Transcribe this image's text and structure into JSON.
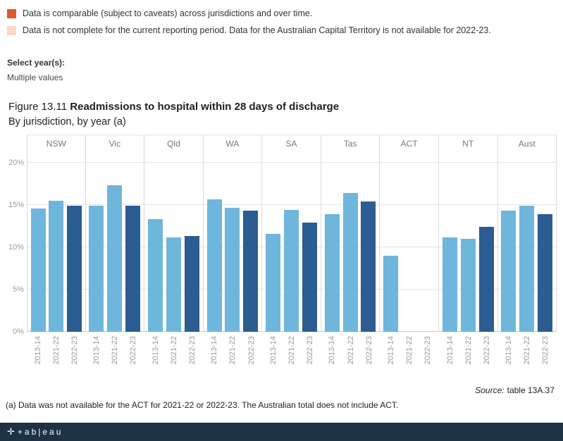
{
  "legend": {
    "items": [
      {
        "name": "comparable",
        "label": "Data is comparable (subject to caveats) across jurisdictions and over time."
      },
      {
        "name": "incomplete",
        "label": "Data is not complete for the current reporting period. Data for the Australian Capital Territory is not available for 2022-23."
      }
    ]
  },
  "filter": {
    "label": "Select year(s):",
    "value": "Multiple values"
  },
  "title": {
    "prefix": "Figure 13.11",
    "main": "Readmissions to hospital within 28 days of discharge",
    "subtitle": "By jurisdiction, by year (a)"
  },
  "chart_data": {
    "type": "bar",
    "title": "Figure 13.11 Readmissions to hospital within 28 days of discharge",
    "subtitle": "By jurisdiction, by year (a)",
    "categories": [
      "NSW",
      "Vic",
      "Qld",
      "WA",
      "SA",
      "Tas",
      "ACT",
      "NT",
      "Aust"
    ],
    "years": [
      "2013-14",
      "2021-22",
      "2022-23"
    ],
    "series": [
      {
        "name": "2013-14",
        "color_key": "bar_light",
        "values": [
          14.6,
          14.9,
          13.3,
          15.7,
          11.6,
          13.9,
          9.0,
          11.2,
          14.3
        ]
      },
      {
        "name": "2021-22",
        "color_key": "bar_light",
        "values": [
          15.5,
          17.3,
          11.2,
          14.7,
          14.4,
          16.4,
          null,
          11.0,
          14.9
        ]
      },
      {
        "name": "2022-23",
        "color_key": "bar_dark",
        "values": [
          14.9,
          14.9,
          11.3,
          14.3,
          12.9,
          15.4,
          null,
          12.4,
          13.9
        ]
      }
    ],
    "ylabel": "",
    "ylim": [
      0,
      20
    ],
    "yticks": [
      "0%",
      "5%",
      "10%",
      "15%",
      "20%"
    ],
    "grid": "horizontal",
    "legend_position": "none"
  },
  "source": {
    "label": "Source:",
    "value": "table 13A.37"
  },
  "footnote": {
    "text": "(a) Data was not available for the ACT for 2021-22 or 2022-23. The Australian total does not include ACT."
  },
  "footer": {
    "logo_icon": "✛",
    "logo_text": "+ab|eau"
  },
  "colors": {
    "comparable": "#e0582d",
    "incomplete": "#f9d8c5",
    "bar_light": "#6fb6dc",
    "bar_dark": "#2b5c92",
    "footer_bg": "#1d3245"
  }
}
